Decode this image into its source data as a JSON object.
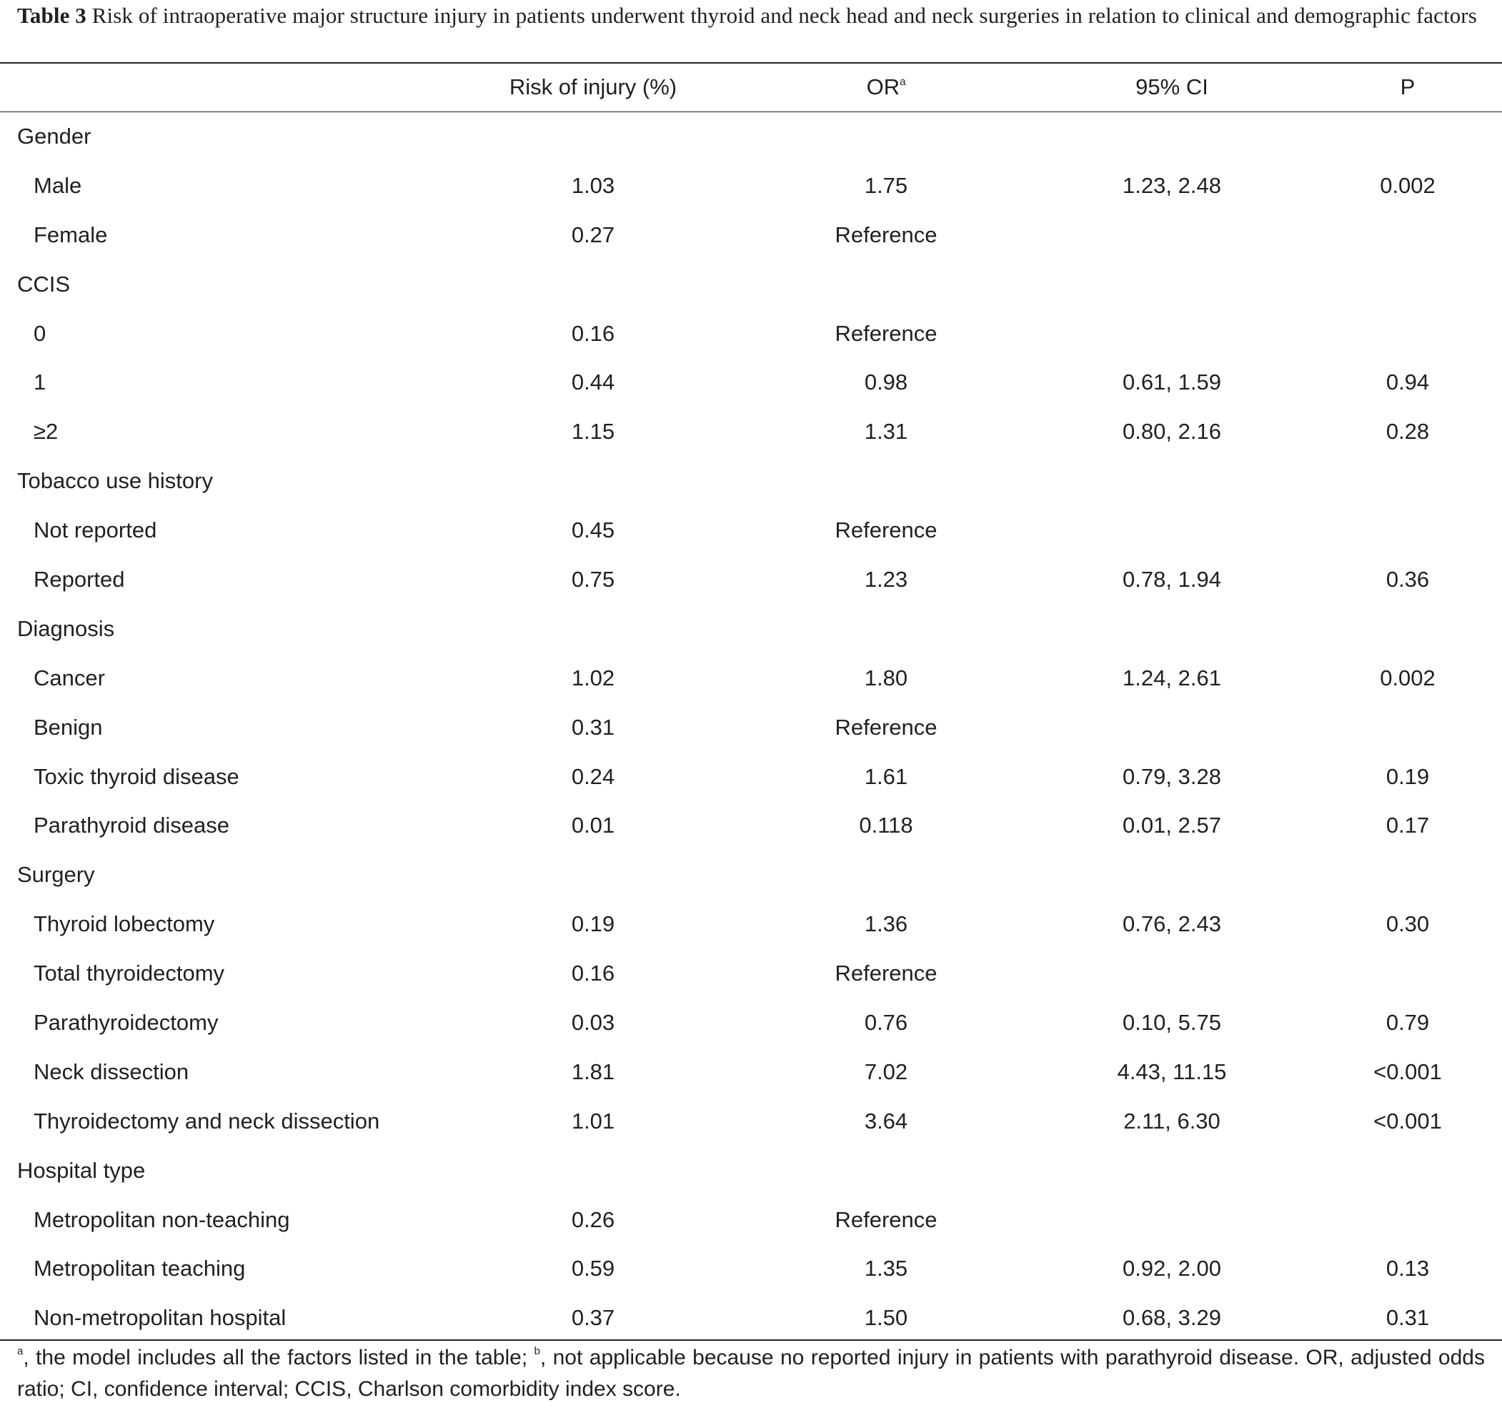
{
  "caption": {
    "label": "Table 3",
    "text": "Risk of intraoperative major structure injury in patients underwent thyroid and neck head and neck surgeries in relation to clinical and demographic factors"
  },
  "header": {
    "risk": "Risk of injury (%)",
    "or": "OR",
    "or_sup": "a",
    "ci": "95% CI",
    "p": "P"
  },
  "rows": [
    {
      "label": "Gender",
      "group": true
    },
    {
      "label": "Male",
      "risk": "1.03",
      "or": "1.75",
      "ci": "1.23, 2.48",
      "p": "0.002"
    },
    {
      "label": "Female",
      "risk": "0.27",
      "or": "Reference",
      "ci": "",
      "p": ""
    },
    {
      "label": "CCIS",
      "group": true
    },
    {
      "label": "0",
      "risk": "0.16",
      "or": "Reference",
      "ci": "",
      "p": ""
    },
    {
      "label": "1",
      "risk": "0.44",
      "or": "0.98",
      "ci": "0.61, 1.59",
      "p": "0.94"
    },
    {
      "label": "≥2",
      "risk": "1.15",
      "or": "1.31",
      "ci": "0.80, 2.16",
      "p": "0.28"
    },
    {
      "label": "Tobacco use history",
      "group": true
    },
    {
      "label": "Not reported",
      "risk": "0.45",
      "or": "Reference",
      "ci": "",
      "p": ""
    },
    {
      "label": "Reported",
      "risk": "0.75",
      "or": "1.23",
      "ci": "0.78, 1.94",
      "p": "0.36"
    },
    {
      "label": "Diagnosis",
      "group": true
    },
    {
      "label": "Cancer",
      "risk": "1.02",
      "or": "1.80",
      "ci": "1.24, 2.61",
      "p": "0.002"
    },
    {
      "label": "Benign",
      "risk": "0.31",
      "or": "Reference",
      "ci": "",
      "p": ""
    },
    {
      "label": "Toxic thyroid disease",
      "risk": "0.24",
      "or": "1.61",
      "ci": "0.79, 3.28",
      "p": "0.19"
    },
    {
      "label": "Parathyroid disease",
      "risk": "0.01",
      "or": "0.118",
      "ci": "0.01, 2.57",
      "p": "0.17"
    },
    {
      "label": "Surgery",
      "group": true
    },
    {
      "label": "Thyroid lobectomy",
      "risk": "0.19",
      "or": "1.36",
      "ci": "0.76, 2.43",
      "p": "0.30"
    },
    {
      "label": "Total thyroidectomy",
      "risk": "0.16",
      "or": "Reference",
      "ci": "",
      "p": ""
    },
    {
      "label": "Parathyroidectomy",
      "risk": "0.03",
      "or": "0.76",
      "ci": "0.10, 5.75",
      "p": "0.79"
    },
    {
      "label": "Neck dissection",
      "risk": "1.81",
      "or": "7.02",
      "ci": "4.43, 11.15",
      "p": "<0.001"
    },
    {
      "label": "Thyroidectomy and neck dissection",
      "risk": "1.01",
      "or": "3.64",
      "ci": "2.11, 6.30",
      "p": "<0.001"
    },
    {
      "label": "Hospital type",
      "group": true
    },
    {
      "label": "Metropolitan non-teaching",
      "risk": "0.26",
      "or": "Reference",
      "ci": "",
      "p": ""
    },
    {
      "label": "Metropolitan teaching",
      "risk": "0.59",
      "or": "1.35",
      "ci": "0.92, 2.00",
      "p": "0.13"
    },
    {
      "label": "Non-metropolitan hospital",
      "risk": "0.37",
      "or": "1.50",
      "ci": "0.68, 3.29",
      "p": "0.31"
    }
  ],
  "footnote": {
    "sup_a": "a",
    "text_a": ", the model includes all the factors listed in the table; ",
    "sup_b": "b",
    "text_b": ", not applicable because no reported injury in patients with parathyroid disease. OR, adjusted odds ratio; CI, confidence interval; CCIS, Charlson comorbidity index score."
  }
}
